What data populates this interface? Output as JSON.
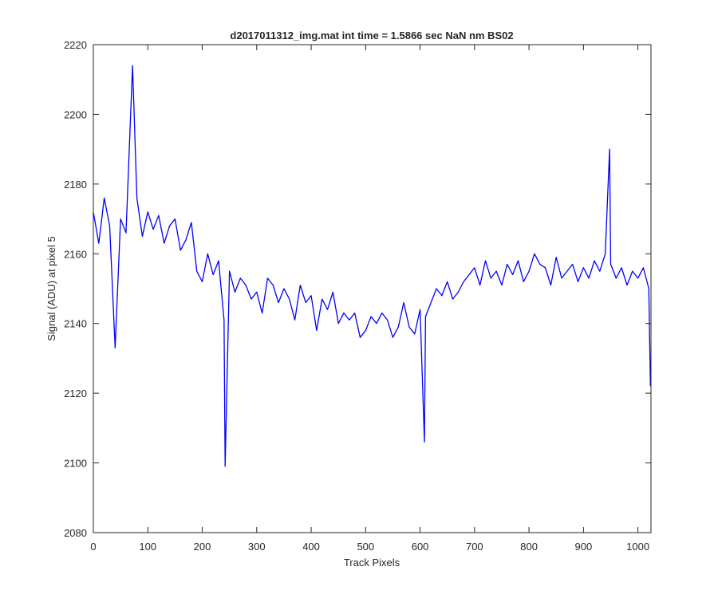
{
  "chart_data": {
    "type": "line",
    "title": "d2017011312_img.mat int time = 1.5866 sec  NaN nm BS02",
    "xlabel": "Track Pixels",
    "ylabel": "Signal (ADU) at pixel 5",
    "xlim": [
      0,
      1024
    ],
    "ylim": [
      2080,
      2220
    ],
    "xticks": [
      "0",
      "100",
      "200",
      "300",
      "400",
      "500",
      "600",
      "700",
      "800",
      "900",
      "1000"
    ],
    "yticks": [
      "2080",
      "2100",
      "2120",
      "2140",
      "2160",
      "2180",
      "2200",
      "2220"
    ],
    "grid": false,
    "legend": "none",
    "series": [
      {
        "color": "#0000ff",
        "x": [
          0,
          10,
          20,
          30,
          40,
          50,
          60,
          72,
          80,
          90,
          100,
          110,
          120,
          130,
          140,
          150,
          160,
          170,
          180,
          190,
          200,
          210,
          220,
          230,
          240,
          242,
          250,
          260,
          270,
          280,
          290,
          300,
          310,
          320,
          330,
          340,
          350,
          360,
          370,
          380,
          390,
          400,
          410,
          420,
          430,
          440,
          450,
          460,
          470,
          480,
          490,
          500,
          510,
          520,
          530,
          540,
          550,
          560,
          570,
          580,
          590,
          600,
          608,
          610,
          620,
          630,
          640,
          650,
          660,
          670,
          680,
          690,
          700,
          710,
          720,
          730,
          740,
          750,
          760,
          770,
          780,
          790,
          800,
          810,
          820,
          830,
          840,
          850,
          860,
          870,
          880,
          890,
          900,
          910,
          920,
          930,
          940,
          948,
          950,
          960,
          970,
          980,
          990,
          1000,
          1010,
          1020,
          1023
        ],
        "y": [
          2172,
          2163,
          2176,
          2168,
          2133,
          2170,
          2166,
          2214,
          2176,
          2165,
          2172,
          2167,
          2171,
          2163,
          2168,
          2170,
          2161,
          2164,
          2169,
          2155,
          2152,
          2160,
          2154,
          2158,
          2141,
          2099,
          2155,
          2149,
          2153,
          2151,
          2147,
          2149,
          2143,
          2153,
          2151,
          2146,
          2150,
          2147,
          2141,
          2151,
          2146,
          2148,
          2138,
          2147,
          2144,
          2149,
          2140,
          2143,
          2141,
          2143,
          2136,
          2138,
          2142,
          2140,
          2143,
          2141,
          2136,
          2139,
          2146,
          2139,
          2137,
          2144,
          2106,
          2142,
          2146,
          2150,
          2148,
          2152,
          2147,
          2149,
          2152,
          2154,
          2156,
          2151,
          2158,
          2153,
          2155,
          2151,
          2157,
          2154,
          2158,
          2152,
          2155,
          2160,
          2157,
          2156,
          2151,
          2159,
          2153,
          2155,
          2157,
          2152,
          2156,
          2153,
          2158,
          2155,
          2160,
          2190,
          2157,
          2153,
          2156,
          2151,
          2155,
          2153,
          2156,
          2150,
          2122
        ]
      }
    ]
  }
}
